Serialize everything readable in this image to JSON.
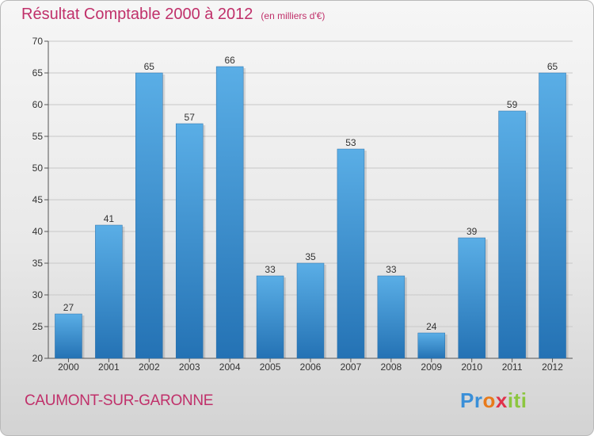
{
  "header": {
    "title": "Résultat Comptable 2000 à 2012",
    "subtitle": "(en milliers d'€)"
  },
  "footer": {
    "commune": "CAUMONT-SUR-GARONNE",
    "logo_parts": [
      "Pr",
      "o",
      "x",
      "iti"
    ]
  },
  "colors": {
    "title": "#c0306a",
    "bar_top": "#5aaee6",
    "bar_bottom": "#2472b4",
    "grid": "#c8c8c8",
    "axis_text": "#333333"
  },
  "chart_data": {
    "type": "bar",
    "title": "Résultat Comptable 2000 à 2012",
    "ylabel": "",
    "xlabel": "",
    "ylim": [
      20,
      70
    ],
    "yticks": [
      20,
      25,
      30,
      35,
      40,
      45,
      50,
      55,
      60,
      65,
      70
    ],
    "categories": [
      "2000",
      "2001",
      "2002",
      "2003",
      "2004",
      "2005",
      "2006",
      "2007",
      "2008",
      "2009",
      "2010",
      "2011",
      "2012"
    ],
    "values": [
      27,
      41,
      65,
      57,
      66,
      33,
      35,
      53,
      33,
      24,
      39,
      59,
      65
    ],
    "grid": true
  }
}
